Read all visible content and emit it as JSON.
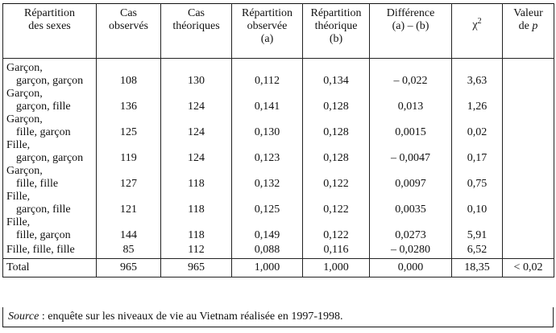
{
  "headers": {
    "col1": [
      "Répartition",
      "des sexes"
    ],
    "col2": [
      "Cas",
      "observés"
    ],
    "col3": [
      "Cas",
      "théoriques"
    ],
    "col4": [
      "Répartition",
      "observée",
      "(a)"
    ],
    "col5": [
      "Répartition",
      "théorique",
      "(b)"
    ],
    "col6": [
      "Différence",
      "(a) – (b)"
    ],
    "col7_base": "χ",
    "col7_sup": "2",
    "col8_line1": "Valeur",
    "col8_prefix": "de ",
    "col8_var": "p"
  },
  "rows": [
    {
      "label": [
        "Garçon,",
        "garçon, garçon"
      ],
      "observed": "108",
      "theoretical": "130",
      "obs_dist": "0,112",
      "theo_dist": "0,134",
      "diff": "– 0,022",
      "chi2": "3,63",
      "p": ""
    },
    {
      "label": [
        "Garçon,",
        "garçon, fille"
      ],
      "observed": "136",
      "theoretical": "124",
      "obs_dist": "0,141",
      "theo_dist": "0,128",
      "diff": "0,013",
      "chi2": "1,26",
      "p": ""
    },
    {
      "label": [
        "Garçon,",
        "fille, garçon"
      ],
      "observed": "125",
      "theoretical": "124",
      "obs_dist": "0,130",
      "theo_dist": "0,128",
      "diff": "0,0015",
      "chi2": "0,02",
      "p": ""
    },
    {
      "label": [
        "Fille,",
        "garçon, garçon"
      ],
      "observed": "119",
      "theoretical": "124",
      "obs_dist": "0,123",
      "theo_dist": "0,128",
      "diff": "– 0,0047",
      "chi2": "0,17",
      "p": ""
    },
    {
      "label": [
        "Garçon,",
        "fille, fille"
      ],
      "observed": "127",
      "theoretical": "118",
      "obs_dist": "0,132",
      "theo_dist": "0,122",
      "diff": "0,0097",
      "chi2": "0,75",
      "p": ""
    },
    {
      "label": [
        "Fille,",
        "garçon, fille"
      ],
      "observed": "121",
      "theoretical": "118",
      "obs_dist": "0,125",
      "theo_dist": "0,122",
      "diff": "0,0035",
      "chi2": "0,10",
      "p": ""
    },
    {
      "label": [
        "Fille,",
        "fille, garçon"
      ],
      "observed": "144",
      "theoretical": "118",
      "obs_dist": "0,149",
      "theo_dist": "0,122",
      "diff": "0,0273",
      "chi2": "5,91",
      "p": ""
    },
    {
      "label": [
        "Fille, fille, fille"
      ],
      "observed": "85",
      "theoretical": "112",
      "obs_dist": "0,088",
      "theo_dist": "0,116",
      "diff": "– 0,0280",
      "chi2": "6,52",
      "p": ""
    }
  ],
  "total": {
    "label": "Total",
    "observed": "965",
    "theoretical": "965",
    "obs_dist": "1,000",
    "theo_dist": "1,000",
    "diff": "0,000",
    "chi2": "18,35",
    "p": "< 0,02"
  },
  "source": {
    "label": "Source",
    "text": " : enquête sur les niveaux de vie au Vietnam réalisée en 1997-1998."
  }
}
